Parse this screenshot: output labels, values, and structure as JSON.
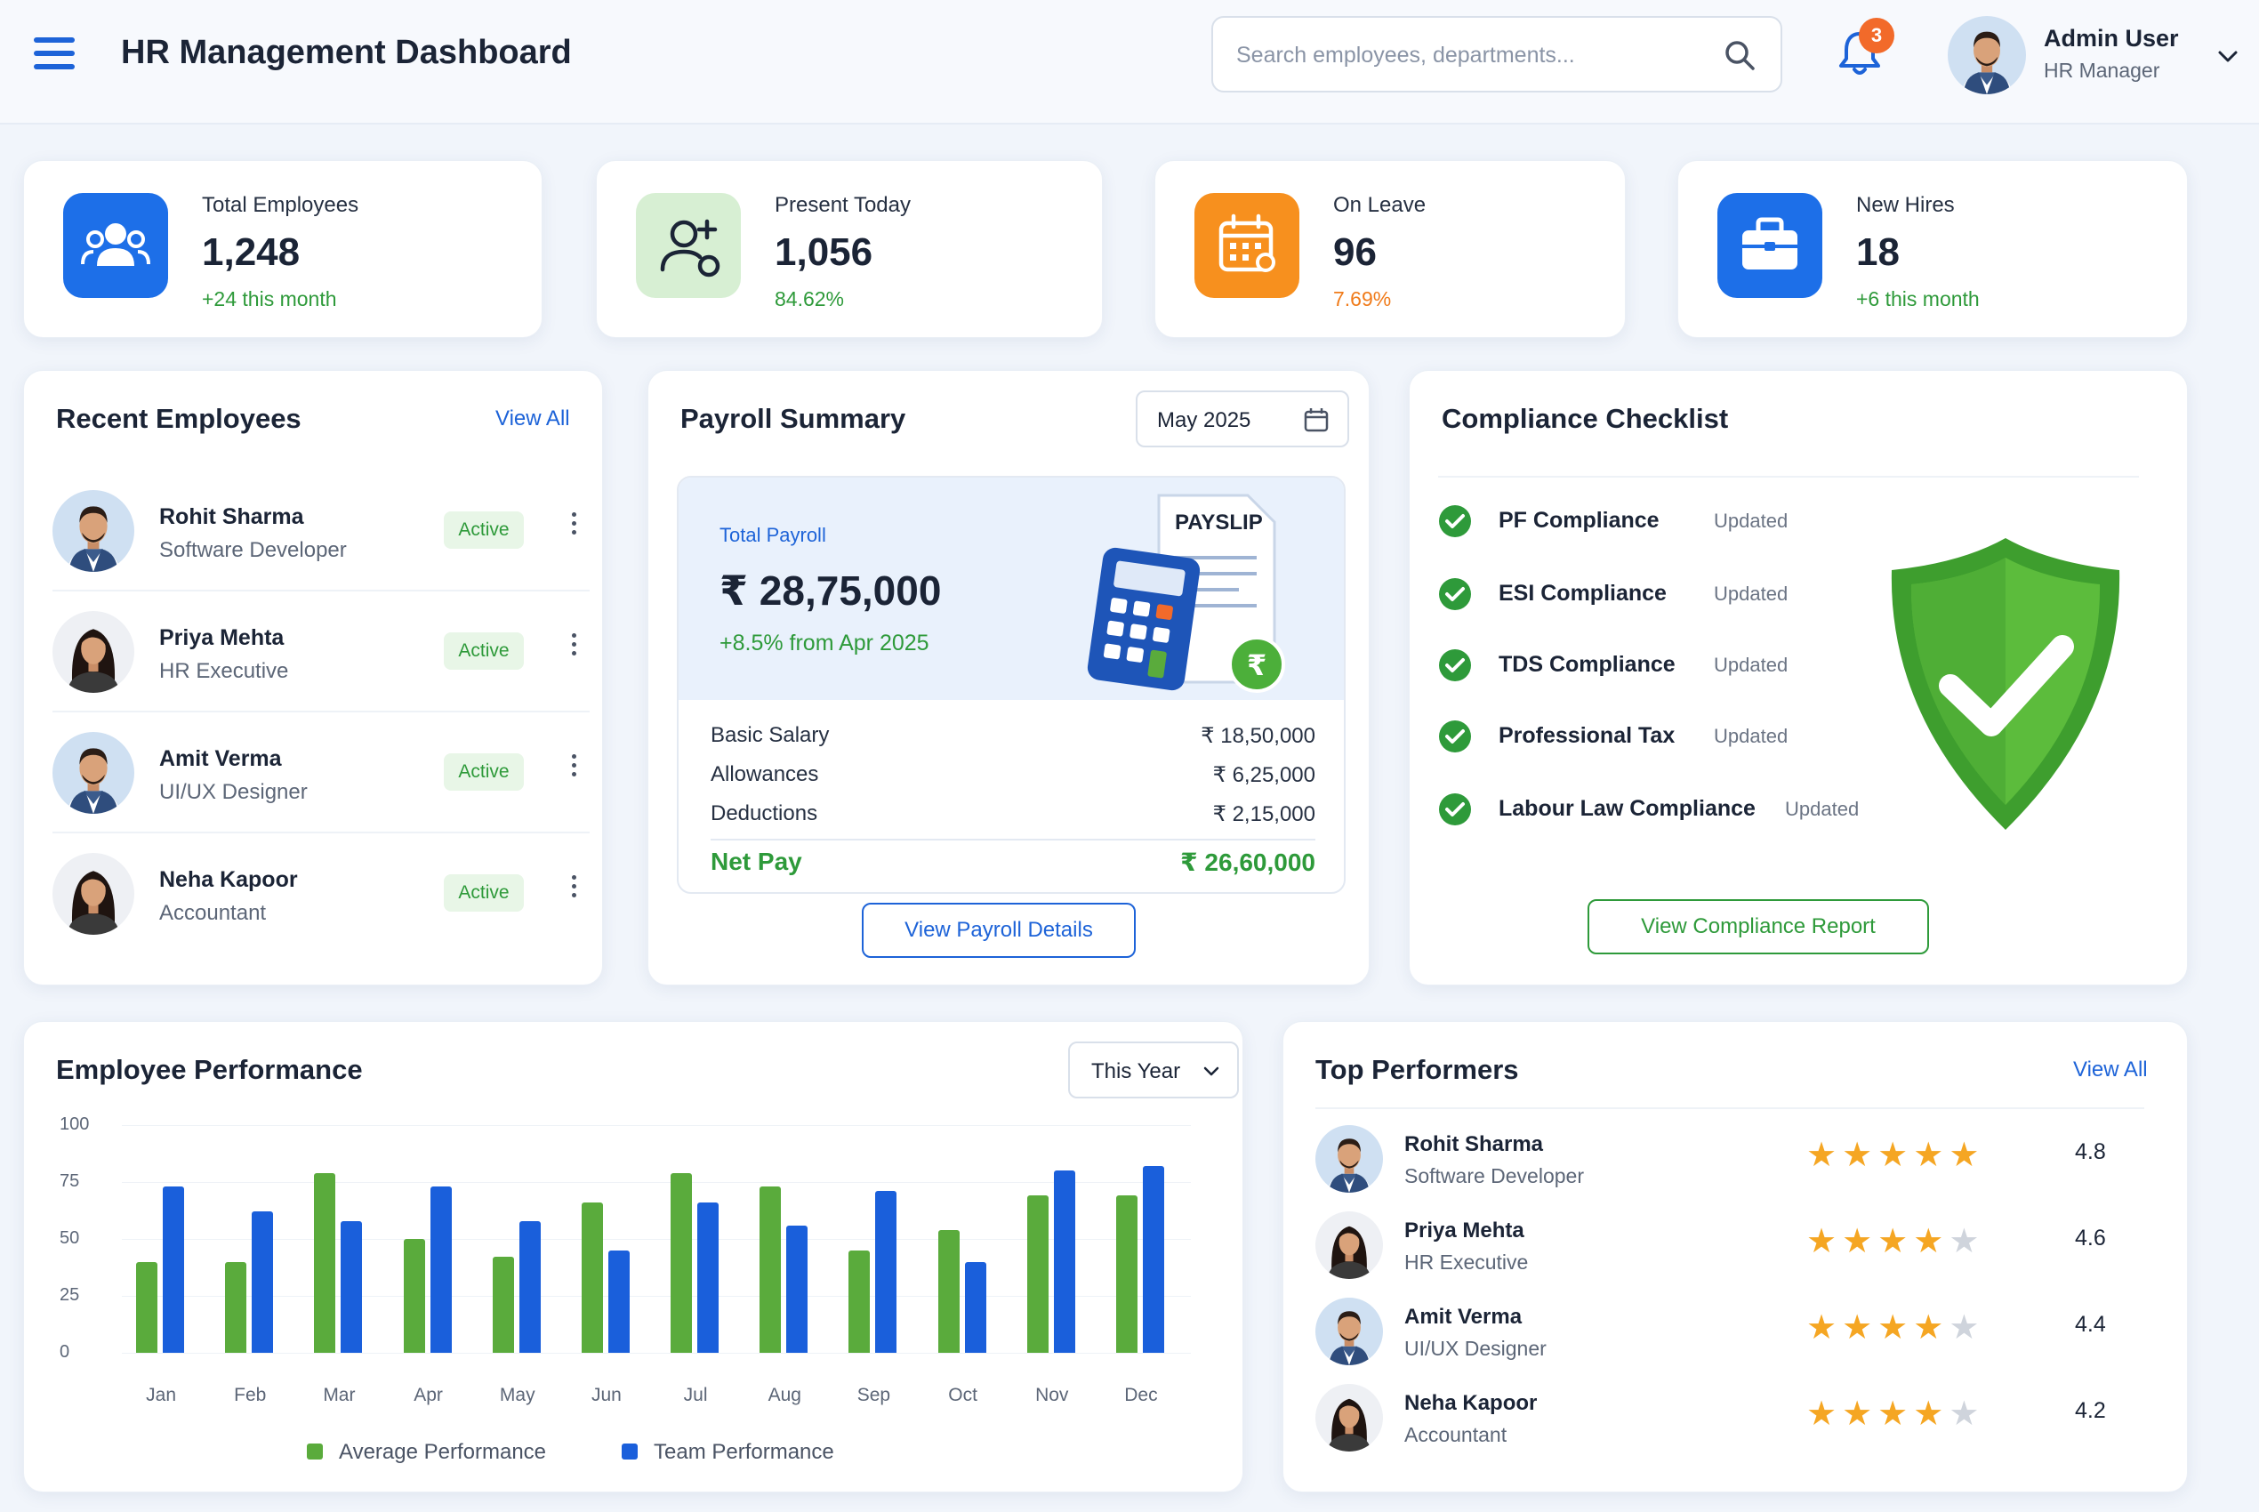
{
  "header": {
    "title": "HR Management Dashboard",
    "search_placeholder": "Search employees, departments...",
    "notification_count": "3",
    "user_name": "Admin User",
    "user_role": "HR Manager"
  },
  "stats": [
    {
      "label": "Total Employees",
      "value": "1,248",
      "sub": "+24 this month",
      "icon": "users-icon",
      "color": "#1d6fe8",
      "sub_color": "#2e9a3a"
    },
    {
      "label": "Present Today",
      "value": "1,056",
      "sub": "84.62%",
      "icon": "user-check-icon",
      "color": "#d7efd3",
      "sub_color": "#2e9a3a"
    },
    {
      "label": "On Leave",
      "value": "96",
      "sub": "7.69%",
      "icon": "calendar-icon",
      "color": "#f7901e",
      "sub_color": "#f07b1a"
    },
    {
      "label": "New Hires",
      "value": "18",
      "sub": "+6 this month",
      "icon": "briefcase-icon",
      "color": "#1d6fe8",
      "sub_color": "#2e9a3a"
    }
  ],
  "recent_employees": {
    "title": "Recent Employees",
    "view_all": "View All",
    "items": [
      {
        "name": "Rohit Sharma",
        "role": "Software Developer",
        "status": "Active"
      },
      {
        "name": "Priya Mehta",
        "role": "HR Executive",
        "status": "Active"
      },
      {
        "name": "Amit Verma",
        "role": "UI/UX Designer",
        "status": "Active"
      },
      {
        "name": "Neha Kapoor",
        "role": "Accountant",
        "status": "Active"
      }
    ]
  },
  "payroll": {
    "title": "Payroll Summary",
    "period": "May 2025",
    "total_label": "Total Payroll",
    "total_value": "₹ 28,75,000",
    "growth": "+8.5% from Apr 2025",
    "illustration_text": "PAYSLIP",
    "rows": [
      {
        "label": "Basic Salary",
        "value": "₹ 18,50,000"
      },
      {
        "label": "Allowances",
        "value": "₹ 6,25,000"
      },
      {
        "label": "Deductions",
        "value": "₹ 2,15,000"
      }
    ],
    "net_label": "Net Pay",
    "net_value": "₹ 26,60,000",
    "button": "View Payroll Details"
  },
  "compliance": {
    "title": "Compliance Checklist",
    "items": [
      {
        "name": "PF Compliance",
        "status": "Updated"
      },
      {
        "name": "ESI Compliance",
        "status": "Updated"
      },
      {
        "name": "TDS Compliance",
        "status": "Updated"
      },
      {
        "name": "Professional Tax",
        "status": "Updated"
      },
      {
        "name": "Labour Law Compliance",
        "status": "Updated"
      }
    ],
    "button": "View Compliance Report"
  },
  "performance": {
    "title": "Employee Performance",
    "filter": "This Year"
  },
  "chart_data": {
    "type": "bar",
    "categories": [
      "Jan",
      "Feb",
      "Mar",
      "Apr",
      "May",
      "Jun",
      "Jul",
      "Aug",
      "Sep",
      "Oct",
      "Nov",
      "Dec"
    ],
    "series": [
      {
        "name": "Average Performance",
        "color": "#5aab3c",
        "values": [
          40,
          40,
          79,
          50,
          42,
          66,
          79,
          73,
          45,
          54,
          69,
          69
        ]
      },
      {
        "name": "Team Performance",
        "color": "#1a5fdb",
        "values": [
          73,
          62,
          58,
          73,
          58,
          45,
          66,
          56,
          71,
          40,
          80,
          82
        ]
      }
    ],
    "yticks": [
      0,
      25,
      50,
      75,
      100
    ],
    "ylim": [
      0,
      100
    ],
    "grid": true,
    "legend": "bottom"
  },
  "top_performers": {
    "title": "Top Performers",
    "view_all": "View All",
    "items": [
      {
        "name": "Rohit Sharma",
        "role": "Software Developer",
        "rating": 4.8,
        "score": "4.8",
        "stars_on": 5
      },
      {
        "name": "Priya Mehta",
        "role": "HR Executive",
        "rating": 4.6,
        "score": "4.6",
        "stars_on": 4
      },
      {
        "name": "Amit Verma",
        "role": "UI/UX Designer",
        "rating": 4.4,
        "score": "4.4",
        "stars_on": 4
      },
      {
        "name": "Neha Kapoor",
        "role": "Accountant",
        "rating": 4.2,
        "score": "4.2",
        "stars_on": 4
      }
    ]
  },
  "colors": {
    "primary": "#1d63d8",
    "success": "#2e9a3a",
    "warning": "#f7901e"
  }
}
